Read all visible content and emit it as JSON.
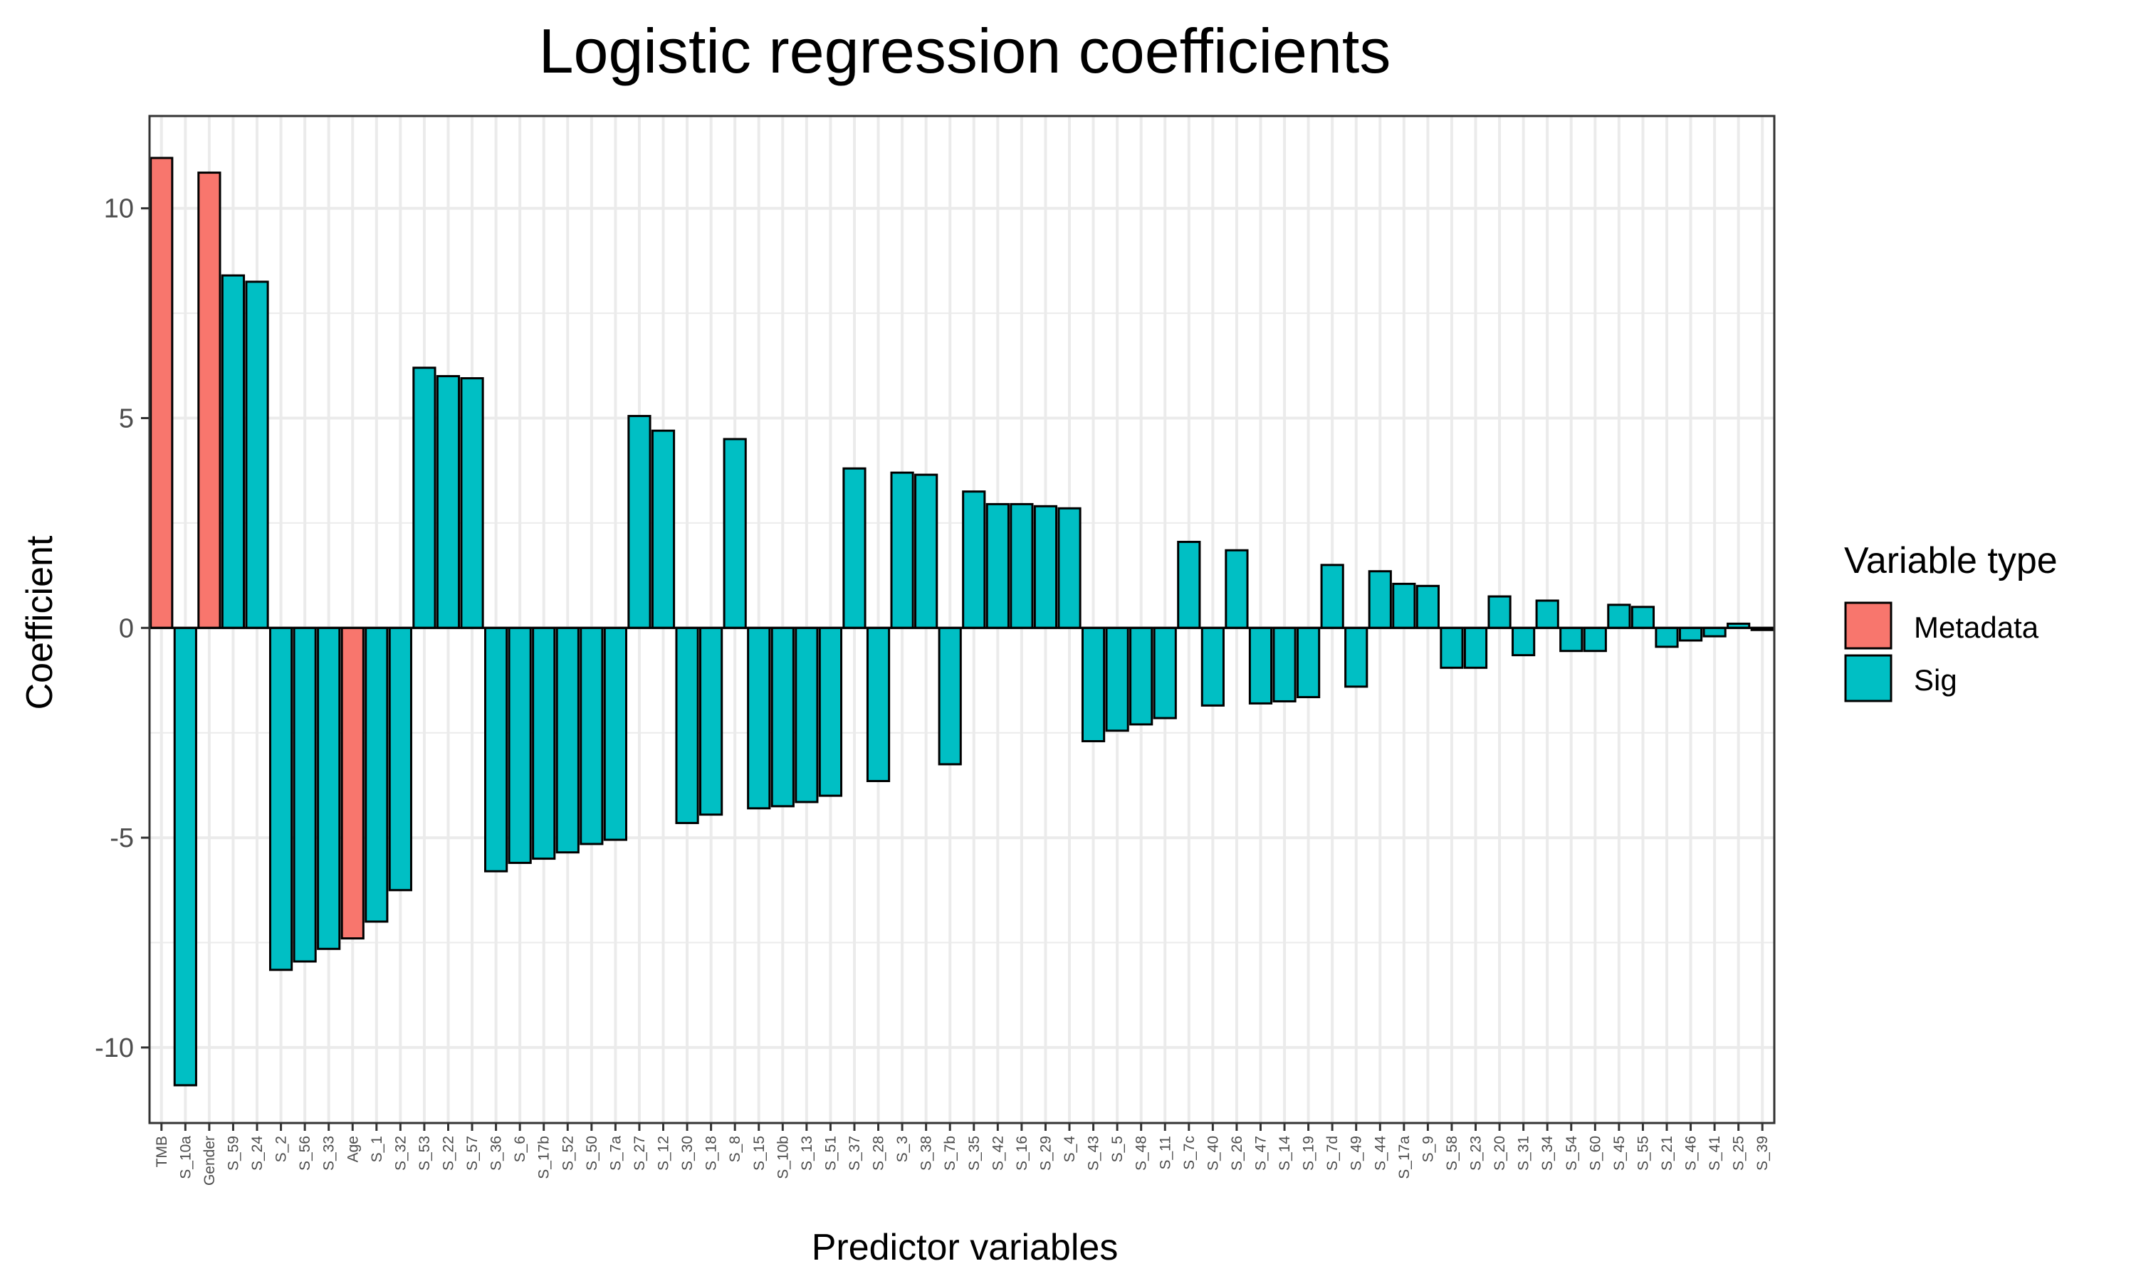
{
  "chart_data": {
    "type": "bar",
    "title": "Logistic regression coefficients",
    "xlabel": "Predictor variables",
    "ylabel": "Coefficient",
    "ylim": [
      -11.8,
      12.2
    ],
    "yticks": [
      -10,
      -5,
      0,
      5,
      10
    ],
    "grid": true,
    "legend": {
      "title": "Variable type",
      "placement": "right",
      "entries": [
        {
          "name": "Metadata",
          "color": "#F8766D"
        },
        {
          "name": "Sig",
          "color": "#00BFC4"
        }
      ]
    },
    "categories": [
      "TMB",
      "S_10a",
      "Gender",
      "S_59",
      "S_24",
      "S_2",
      "S_56",
      "S_33",
      "Age",
      "S_1",
      "S_32",
      "S_53",
      "S_22",
      "S_57",
      "S_36",
      "S_6",
      "S_17b",
      "S_52",
      "S_50",
      "S_7a",
      "S_27",
      "S_12",
      "S_30",
      "S_18",
      "S_8",
      "S_15",
      "S_10b",
      "S_13",
      "S_51",
      "S_37",
      "S_28",
      "S_3",
      "S_38",
      "S_7b",
      "S_35",
      "S_42",
      "S_16",
      "S_29",
      "S_4",
      "S_43",
      "S_5",
      "S_48",
      "S_11",
      "S_7c",
      "S_40",
      "S_26",
      "S_47",
      "S_14",
      "S_19",
      "S_7d",
      "S_49",
      "S_44",
      "S_17a",
      "S_9",
      "S_58",
      "S_23",
      "S_20",
      "S_31",
      "S_34",
      "S_54",
      "S_60",
      "S_45",
      "S_55",
      "S_21",
      "S_46",
      "S_41",
      "S_25",
      "S_39"
    ],
    "values": [
      11.2,
      -10.9,
      10.85,
      8.4,
      8.25,
      -8.15,
      -7.95,
      -7.65,
      -7.4,
      -7.0,
      -6.25,
      6.2,
      6.0,
      5.95,
      -5.8,
      -5.6,
      -5.5,
      -5.35,
      -5.15,
      -5.05,
      5.05,
      4.7,
      -4.65,
      -4.45,
      4.5,
      -4.3,
      -4.25,
      -4.15,
      -4.0,
      3.8,
      -3.65,
      3.7,
      3.65,
      -3.25,
      3.25,
      2.95,
      2.95,
      2.9,
      2.85,
      -2.7,
      -2.45,
      -2.3,
      -2.15,
      2.05,
      -1.85,
      1.85,
      -1.8,
      -1.75,
      -1.65,
      1.5,
      -1.4,
      1.35,
      1.05,
      1.0,
      -0.95,
      -0.95,
      0.75,
      -0.65,
      0.65,
      -0.55,
      -0.55,
      0.55,
      0.5,
      -0.45,
      -0.3,
      -0.2,
      0.1,
      -0.05
    ],
    "types": [
      "Metadata",
      "Sig",
      "Metadata",
      "Sig",
      "Sig",
      "Sig",
      "Sig",
      "Sig",
      "Metadata",
      "Sig",
      "Sig",
      "Sig",
      "Sig",
      "Sig",
      "Sig",
      "Sig",
      "Sig",
      "Sig",
      "Sig",
      "Sig",
      "Sig",
      "Sig",
      "Sig",
      "Sig",
      "Sig",
      "Sig",
      "Sig",
      "Sig",
      "Sig",
      "Sig",
      "Sig",
      "Sig",
      "Sig",
      "Sig",
      "Sig",
      "Sig",
      "Sig",
      "Sig",
      "Sig",
      "Sig",
      "Sig",
      "Sig",
      "Sig",
      "Sig",
      "Sig",
      "Sig",
      "Sig",
      "Sig",
      "Sig",
      "Sig",
      "Sig",
      "Sig",
      "Sig",
      "Sig",
      "Sig",
      "Sig",
      "Sig",
      "Sig",
      "Sig",
      "Sig",
      "Sig",
      "Sig",
      "Sig",
      "Sig",
      "Sig",
      "Sig",
      "Sig",
      "Sig"
    ]
  }
}
